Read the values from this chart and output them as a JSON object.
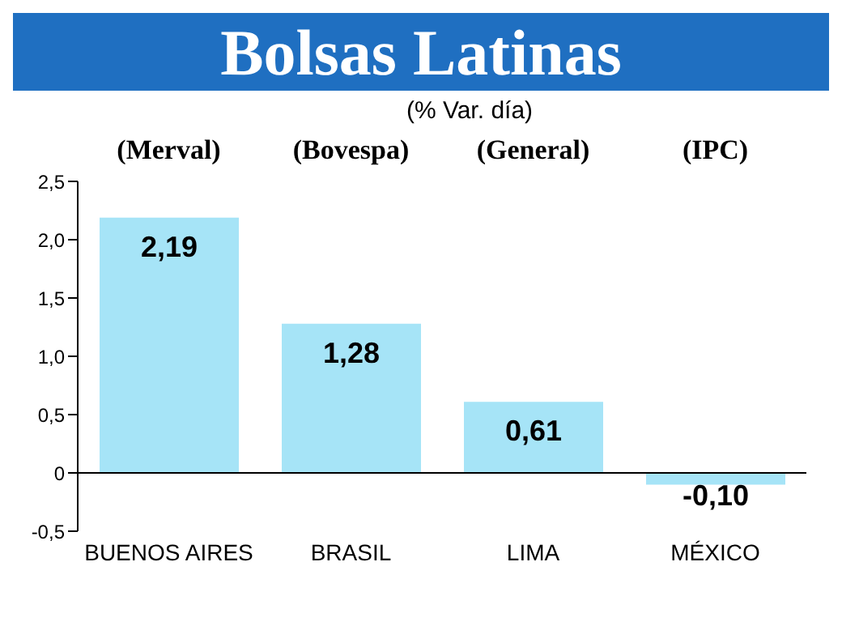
{
  "chart_data": {
    "type": "bar",
    "title": "Bolsas Latinas",
    "subtitle": "(% Var. día)",
    "categories": [
      "BUENOS AIRES",
      "BRASIL",
      "LIMA",
      "MÉXICO"
    ],
    "values": [
      2.19,
      1.28,
      0.61,
      -0.1
    ],
    "value_labels": [
      "2,19",
      "1,28",
      "0,61",
      "-0,10"
    ],
    "color": "#a6e4f7",
    "ylim": [
      -0.5,
      2.5
    ],
    "yticks": [
      {
        "value": -0.5,
        "label": "-0,5"
      },
      0,
      {
        "value": 0.5,
        "label": "0,5"
      },
      {
        "value": 1,
        "label": "1,0"
      },
      {
        "value": 1.5,
        "label": "1,5"
      },
      {
        "value": 2,
        "label": "2,0"
      },
      {
        "value": 2.5,
        "label": "2,5"
      }
    ],
    "ref_lines": [
      {
        "axis": "y",
        "value": 0,
        "color": "#000000"
      }
    ],
    "annotations": [
      "(Merval)",
      "(Bovespa)",
      "(General)",
      "(IPC)"
    ],
    "grid": false,
    "legend": false
  }
}
